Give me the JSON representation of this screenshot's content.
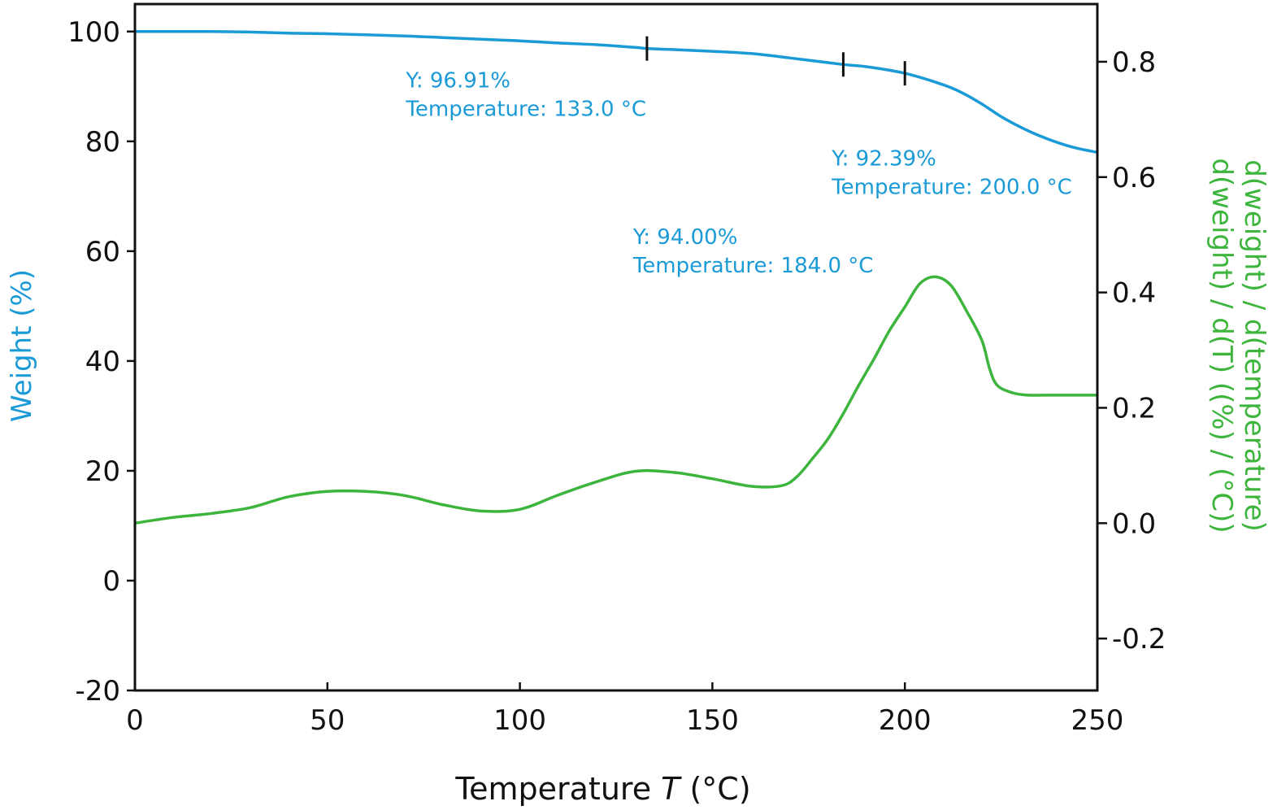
{
  "chart_data": {
    "type": "line",
    "title": "",
    "xlabel_prefix": "Temperature ",
    "xlabel_var": "T",
    "xlabel_suffix": " (°C)",
    "ylabel_left": "Weight (%)",
    "ylabel_right_line1": "d(weight) / d(temperature)",
    "ylabel_right_line2": "d(weight) / d(T) ((%) / (°C))",
    "xlim": [
      0,
      250
    ],
    "ylim_left": [
      -20,
      105
    ],
    "ylim_right": [
      -0.29,
      0.9
    ],
    "x_ticks": [
      "0",
      "50",
      "100",
      "150",
      "200",
      "250"
    ],
    "x_tick_values": [
      0,
      50,
      100,
      150,
      200,
      250
    ],
    "y_left_ticks": [
      "-20",
      "0",
      "20",
      "40",
      "60",
      "80",
      "100"
    ],
    "y_left_tick_values": [
      -20,
      0,
      20,
      40,
      60,
      80,
      100
    ],
    "y_right_ticks": [
      "-0.2",
      "0.0",
      "0.2",
      "0.4",
      "0.6",
      "0.8"
    ],
    "y_right_tick_values": [
      -0.2,
      0.0,
      0.2,
      0.4,
      0.6,
      0.8
    ],
    "grid": false,
    "colors": {
      "weight": "#1a9ad6",
      "derivative": "#3db53d",
      "axis": "#111111",
      "marker": "#111111"
    },
    "series": [
      {
        "axis": "left",
        "x": [
          0,
          10,
          20,
          30,
          40,
          50,
          60,
          70,
          80,
          90,
          100,
          110,
          120,
          130,
          133,
          140,
          150,
          160,
          170,
          184,
          190,
          200,
          210,
          215,
          220,
          225,
          230,
          235,
          240,
          245,
          250
        ],
        "y": [
          100,
          100,
          100,
          99.9,
          99.7,
          99.6,
          99.4,
          99.2,
          98.9,
          98.6,
          98.3,
          97.9,
          97.6,
          97.1,
          96.91,
          96.7,
          96.4,
          96.0,
          95.2,
          94.0,
          93.6,
          92.39,
          90.3,
          88.8,
          86.8,
          84.5,
          82.6,
          81.0,
          79.7,
          78.7,
          78.0
        ]
      },
      {
        "axis": "right",
        "x": [
          0,
          10,
          20,
          30,
          40,
          50,
          60,
          70,
          80,
          90,
          100,
          110,
          120,
          130,
          140,
          150,
          160,
          168,
          172,
          176,
          180,
          184,
          188,
          192,
          196,
          200,
          204,
          208,
          212,
          216,
          220,
          222,
          224,
          228,
          232,
          236,
          240,
          245,
          250
        ],
        "y": [
          0.0,
          0.01,
          0.017,
          0.027,
          0.046,
          0.055,
          0.055,
          0.048,
          0.032,
          0.021,
          0.024,
          0.049,
          0.072,
          0.09,
          0.088,
          0.077,
          0.064,
          0.065,
          0.081,
          0.112,
          0.146,
          0.19,
          0.239,
          0.285,
          0.334,
          0.375,
          0.416,
          0.427,
          0.412,
          0.368,
          0.317,
          0.268,
          0.239,
          0.226,
          0.222,
          0.222,
          0.222,
          0.222,
          0.222
        ]
      }
    ],
    "markers": [
      {
        "x": 133.0,
        "y": 96.91
      },
      {
        "x": 184.0,
        "y": 94.0
      },
      {
        "x": 200.0,
        "y": 92.39
      }
    ],
    "annotations": [
      {
        "line1": "Y: 96.91%",
        "line2": "Temperature: 133.0 °C",
        "x": 70.4,
        "y": 89.8
      },
      {
        "line1": "Y: 94.00%",
        "line2": "Temperature: 184.0 °C",
        "x": 129.4,
        "y": 61.3
      },
      {
        "line1": "Y: 92.39%",
        "line2": "Temperature: 200.0 °C",
        "x": 181.0,
        "y": 75.6
      }
    ]
  }
}
